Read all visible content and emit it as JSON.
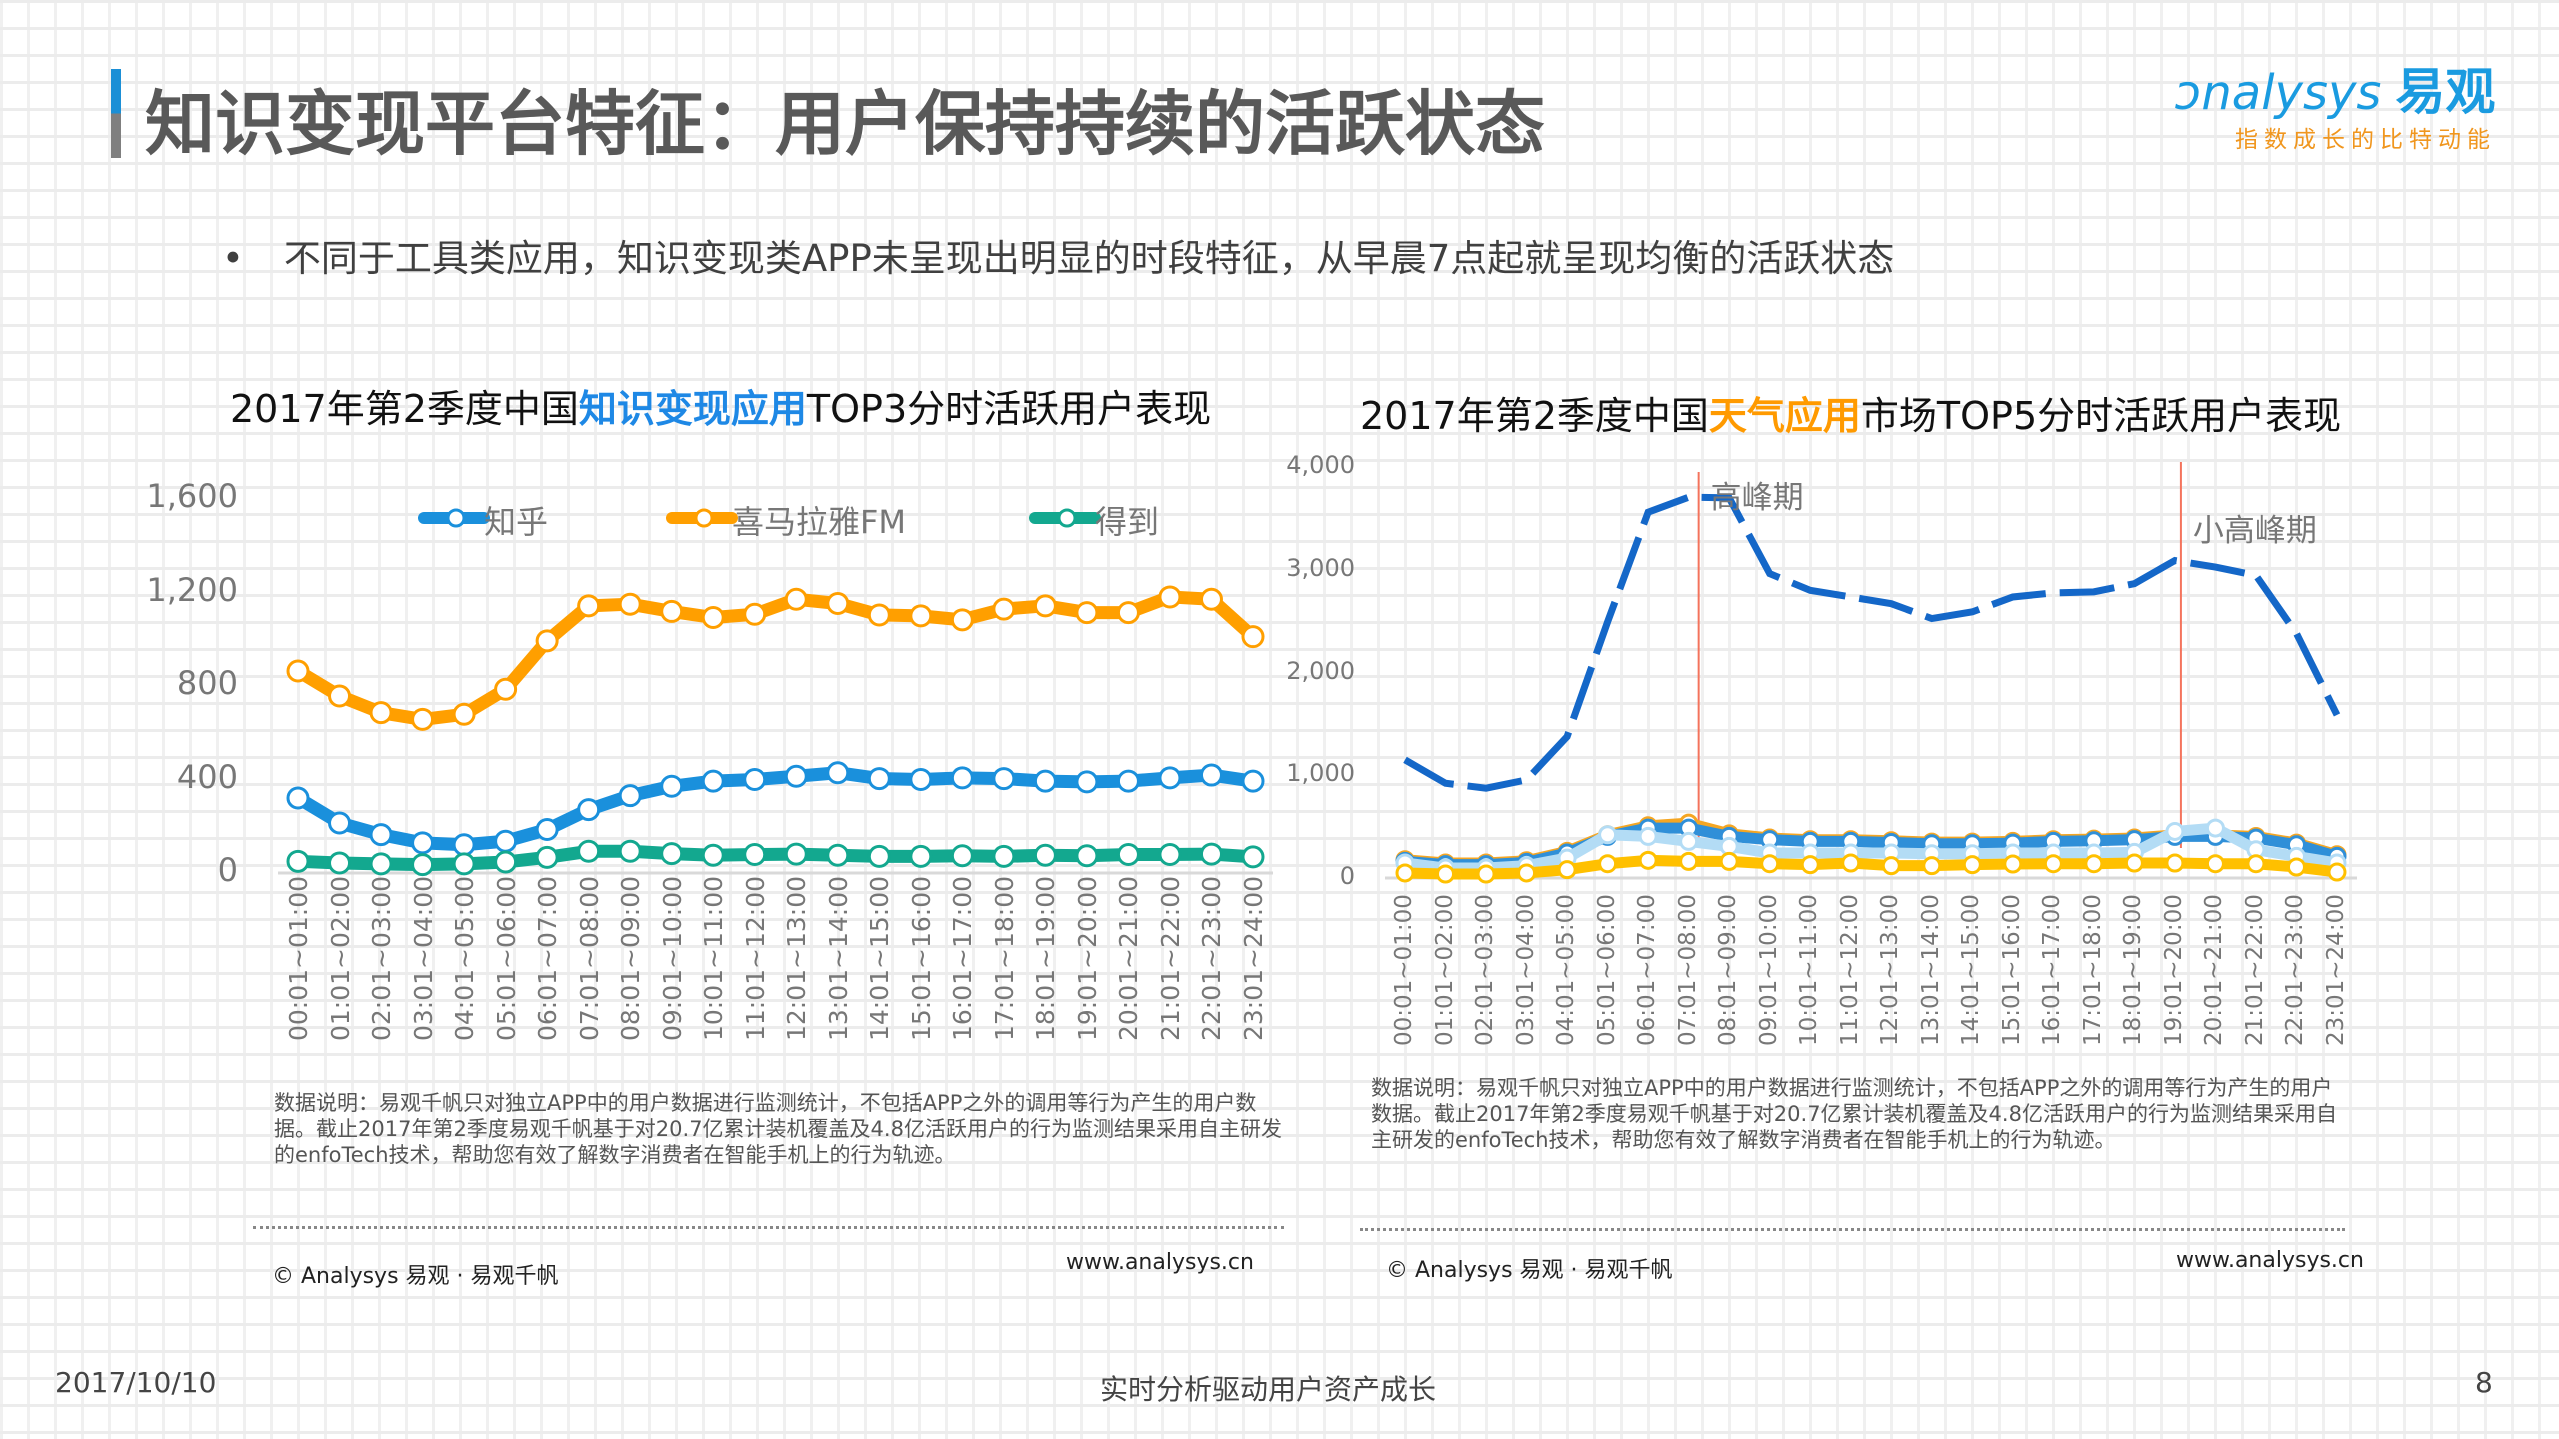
{
  "header": {
    "title": "知识变现平台特征：用户保持持续的活跃状态",
    "logo_en": "nalysys",
    "logo_cn": "易观",
    "logo_slogan": "指数成长的比特动能"
  },
  "bullet": {
    "marker": "•",
    "text": "不同于工具类应用，知识变现类APP未呈现出明显的时段特征，从早晨7点起就呈现均衡的活跃状态"
  },
  "watermark": {
    "text": "Analysys 易观",
    "sub": "实时分析驱动用户资产成长"
  },
  "chart_data": [
    {
      "type": "line",
      "title_parts": [
        "2017年第2季度中国",
        "知识变现应用",
        "TOP3分时活跃用户表现"
      ],
      "ylim": [
        0,
        1600
      ],
      "yticks": [
        "0",
        "400",
        "800",
        "1,200",
        "1,600"
      ],
      "grid": false,
      "legend": "top",
      "categories": [
        "00:01~01:00",
        "01:01~02:00",
        "02:01~03:00",
        "03:01~04:00",
        "04:01~05:00",
        "05:01~06:00",
        "06:01~07:00",
        "07:01~08:00",
        "08:01~09:00",
        "09:01~10:00",
        "10:01~11:00",
        "11:01~12:00",
        "12:01~13:00",
        "13:01~14:00",
        "14:01~15:00",
        "15:01~16:00",
        "16:01~17:00",
        "17:01~18:00",
        "18:01~19:00",
        "19:01~20:00",
        "20:01~21:00",
        "21:01~22:00",
        "22:01~23:00",
        "23:01~24:00"
      ],
      "series": [
        {
          "name": "知乎",
          "color": "#1a90dc",
          "values": [
            321,
            214,
            164,
            129,
            121,
            136,
            186,
            271,
            331,
            371,
            393,
            400,
            414,
            429,
            404,
            400,
            407,
            404,
            393,
            390,
            393,
            407,
            419,
            393
          ]
        },
        {
          "name": "喜马拉雅FM",
          "color": "#ff9f00",
          "values": [
            864,
            757,
            686,
            657,
            679,
            786,
            993,
            1143,
            1150,
            1119,
            1093,
            1107,
            1171,
            1153,
            1104,
            1100,
            1083,
            1129,
            1143,
            1114,
            1114,
            1181,
            1171,
            1011
          ]
        },
        {
          "name": "得到",
          "color": "#13a88f",
          "values": [
            50,
            43,
            39,
            36,
            39,
            47,
            67,
            93,
            93,
            83,
            76,
            79,
            81,
            76,
            71,
            71,
            74,
            71,
            76,
            74,
            79,
            79,
            81,
            69
          ]
        }
      ],
      "note": "数据说明：易观千帆只对独立APP中的用户数据进行监测统计，不包括APP之外的调用等行为产生的用户数据。截止2017年第2季度易观千帆基于对20.7亿累计装机覆盖及4.8亿活跃用户的行为监测结果采用自主研发的enfoTech技术，帮助您有效了解数字消费者在智能手机上的行为轨迹。",
      "copyright": "© Analysys 易观 · 易观千帆",
      "url": "www.analysys.cn"
    },
    {
      "type": "line",
      "title_parts": [
        "2017年第2季度中国",
        "天气应用",
        "市场TOP5分时活跃用户表现"
      ],
      "ylim": [
        0,
        4000
      ],
      "yticks": [
        "0",
        "1,000",
        "2,000",
        "3,000",
        "4,000"
      ],
      "grid": false,
      "legend": "none",
      "categories": [
        "00:01~01:00",
        "01:01~02:00",
        "02:01~03:00",
        "03:01~04:00",
        "04:01~05:00",
        "05:01~06:00",
        "06:01~07:00",
        "07:01~08:00",
        "08:01~09:00",
        "09:01~10:00",
        "10:01~11:00",
        "11:01~12:00",
        "12:01~13:00",
        "13:01~14:00",
        "14:01~15:00",
        "15:01~16:00",
        "16:01~17:00",
        "17:01~18:00",
        "18:01~19:00",
        "19:01~20:00",
        "20:01~21:00",
        "21:01~22:00",
        "22:01~23:00",
        "23:01~24:00"
      ],
      "series": [
        {
          "color": "#1467c8",
          "style": "dashed",
          "values": [
            1150,
            922,
            874,
            955,
            1376,
            2493,
            3560,
            3706,
            3700,
            2962,
            2800,
            2735,
            2670,
            2525,
            2590,
            2735,
            2775,
            2785,
            2865,
            3090,
            3026,
            2945,
            2380,
            1587
          ]
        },
        {
          "color": "#f5a623",
          "values": [
            178,
            146,
            146,
            168,
            259,
            421,
            508,
            534,
            430,
            389,
            372,
            372,
            362,
            349,
            349,
            356,
            372,
            378,
            389,
            420,
            420,
            404,
            340,
            226
          ]
        },
        {
          "color": "#2f8fd8",
          "values": [
            162,
            130,
            130,
            152,
            243,
            405,
            486,
            486,
            405,
            373,
            356,
            356,
            346,
            333,
            333,
            340,
            356,
            362,
            373,
            405,
            405,
            388,
            324,
            210
          ]
        },
        {
          "color": "#b3dcf5",
          "values": [
            146,
            97,
            97,
            120,
            194,
            421,
            405,
            356,
            308,
            243,
            243,
            243,
            243,
            236,
            236,
            243,
            243,
            243,
            249,
            453,
            486,
            275,
            210,
            146
          ]
        },
        {
          "color": "#ffc000",
          "values": [
            49,
            39,
            39,
            49,
            81,
            139,
            172,
            162,
            162,
            139,
            130,
            146,
            120,
            120,
            130,
            136,
            139,
            139,
            146,
            146,
            139,
            139,
            107,
            58
          ]
        }
      ],
      "annotations": [
        {
          "label": "高峰期",
          "category": "07:01~08:00"
        },
        {
          "label": "小高峰期",
          "category": "19:01~20:00"
        }
      ],
      "annotation_color": "#f4735c",
      "note": "数据说明：易观千帆只对独立APP中的用户数据进行监测统计，不包括APP之外的调用等行为产生的用户数据。截止2017年第2季度易观千帆基于对20.7亿累计装机覆盖及4.8亿活跃用户的行为监测结果采用自主研发的enfoTech技术，帮助您有效了解数字消费者在智能手机上的行为轨迹。",
      "copyright": "© Analysys 易观 · 易观千帆",
      "url": "www.analysys.cn"
    }
  ],
  "footer": {
    "date": "2017/10/10",
    "slogan": "实时分析驱动用户资产成长",
    "page": "8"
  }
}
